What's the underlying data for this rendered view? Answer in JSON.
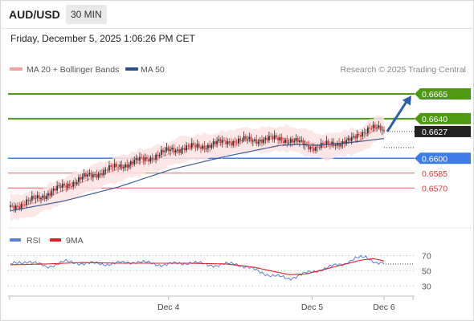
{
  "header": {
    "symbol": "AUD/USD",
    "timeframe": "30 MIN"
  },
  "datetime": "Friday, December 5, 2025 1:06:26 PM CET",
  "legend": {
    "items": [
      {
        "label": "MA 20 + Bollinger Bands",
        "color": "#f4a0a0"
      },
      {
        "label": "MA 50",
        "color": "#2b4f8c"
      }
    ],
    "source": "Research © 2025 Trading Central"
  },
  "rsi_legend": [
    {
      "label": "RSI",
      "color": "#5b7fd9"
    },
    {
      "label": "9MA",
      "color": "#dd2222"
    }
  ],
  "chart_data": [
    {
      "type": "candlestick",
      "title": "AUD/USD 30 MIN",
      "x_tick_labels": [
        "Dec 4",
        "Dec 5",
        "Dec 6"
      ],
      "levels": [
        {
          "value": 0.6665,
          "label": "0.6665",
          "color": "#4d9a12",
          "kind": "resistance"
        },
        {
          "value": 0.664,
          "label": "0.6640",
          "color": "#4d9a12",
          "kind": "resistance"
        },
        {
          "value": 0.6627,
          "label": "0.6627",
          "color": "#222222",
          "kind": "last-price"
        },
        {
          "value": 0.66,
          "label": "0.6600",
          "color": "#3d7be6",
          "kind": "pivot"
        },
        {
          "value": 0.6585,
          "label": "0.6585",
          "color": "#dd3b3b",
          "kind": "support"
        },
        {
          "value": 0.657,
          "label": "0.6570",
          "color": "#dd3b3b",
          "kind": "support"
        }
      ],
      "y_range": [
        0.6533,
        0.6682
      ],
      "price_path": [
        [
          0,
          0.6551
        ],
        [
          10,
          0.6556
        ],
        [
          20,
          0.6564
        ],
        [
          30,
          0.6572
        ],
        [
          40,
          0.658
        ],
        [
          50,
          0.6586
        ],
        [
          60,
          0.6592
        ],
        [
          70,
          0.6597
        ],
        [
          80,
          0.6602
        ],
        [
          90,
          0.6609
        ],
        [
          100,
          0.6611
        ],
        [
          110,
          0.6613
        ],
        [
          120,
          0.6617
        ],
        [
          130,
          0.6618
        ],
        [
          140,
          0.6619
        ],
        [
          150,
          0.662
        ],
        [
          160,
          0.6616
        ],
        [
          170,
          0.6611
        ],
        [
          180,
          0.6615
        ],
        [
          190,
          0.6618
        ],
        [
          200,
          0.6632
        ],
        [
          208,
          0.6627
        ]
      ],
      "ma50_path": [
        [
          0,
          0.6547
        ],
        [
          30,
          0.6557
        ],
        [
          60,
          0.6571
        ],
        [
          90,
          0.6589
        ],
        [
          120,
          0.6602
        ],
        [
          150,
          0.6613
        ],
        [
          160,
          0.6614
        ],
        [
          170,
          0.6613
        ],
        [
          190,
          0.6616
        ],
        [
          208,
          0.662
        ]
      ],
      "projection": {
        "from": 0.6627,
        "to": 0.6665
      },
      "candle_count": 209
    },
    {
      "type": "line",
      "title": "RSI",
      "series": [
        {
          "name": "RSI",
          "color": "#5b7fd9"
        },
        {
          "name": "9MA",
          "color": "#dd2222"
        }
      ],
      "y_tick_labels": [
        "70",
        "50",
        "30"
      ],
      "rsi_ylim": [
        20,
        80
      ],
      "rsi_path": [
        [
          0,
          58
        ],
        [
          10,
          63
        ],
        [
          20,
          55
        ],
        [
          30,
          62
        ],
        [
          40,
          60
        ],
        [
          55,
          59
        ],
        [
          70,
          62
        ],
        [
          85,
          58
        ],
        [
          100,
          61
        ],
        [
          115,
          57
        ],
        [
          125,
          60
        ],
        [
          135,
          52
        ],
        [
          145,
          44
        ],
        [
          155,
          40
        ],
        [
          162,
          45
        ],
        [
          170,
          50
        ],
        [
          178,
          55
        ],
        [
          186,
          60
        ],
        [
          192,
          66
        ],
        [
          198,
          68
        ],
        [
          204,
          61
        ],
        [
          208,
          59
        ]
      ],
      "ma9_path": [
        [
          0,
          58
        ],
        [
          20,
          59
        ],
        [
          40,
          61
        ],
        [
          60,
          60
        ],
        [
          80,
          60
        ],
        [
          100,
          60
        ],
        [
          120,
          59
        ],
        [
          135,
          55
        ],
        [
          145,
          50
        ],
        [
          155,
          45
        ],
        [
          165,
          46
        ],
        [
          175,
          52
        ],
        [
          185,
          58
        ],
        [
          195,
          64
        ],
        [
          202,
          66
        ],
        [
          208,
          63
        ]
      ]
    }
  ]
}
